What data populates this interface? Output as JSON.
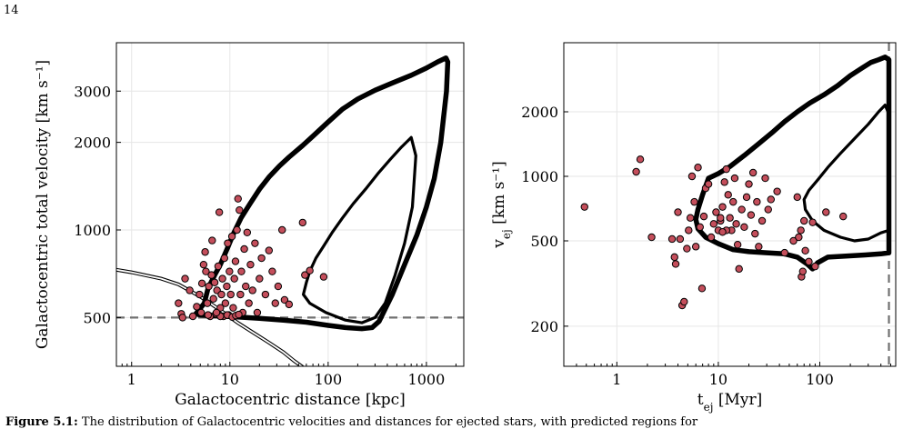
{
  "page_number": "14",
  "caption": {
    "label": "Figure 5.1:",
    "text": "The distribution of Galactocentric velocities and distances for ejected stars, with predicted regions for"
  },
  "colors": {
    "points": "#c44e5b",
    "point_edge": "#000000",
    "contour": "#000000",
    "dashed": "#707070",
    "escape": "#000000",
    "grid": "#e6e6e6"
  },
  "chart_data": [
    {
      "type": "scatter",
      "xlabel": "Galactocentric distance [kpc]",
      "ylabel": "Galactocentric total velocity [km s⁻¹]",
      "xscale": "log",
      "yscale": "log",
      "xlim": [
        0.7,
        2400
      ],
      "ylim": [
        340,
        4400
      ],
      "xticks": [
        {
          "v": 1,
          "label": "1"
        },
        {
          "v": 10,
          "label": "10"
        },
        {
          "v": 100,
          "label": "100"
        },
        {
          "v": 1000,
          "label": "1000"
        }
      ],
      "yticks": [
        {
          "v": 500,
          "label": "500"
        },
        {
          "v": 1000,
          "label": "1000"
        },
        {
          "v": 2000,
          "label": "2000"
        },
        {
          "v": 3000,
          "label": "3000"
        }
      ],
      "grid": true,
      "hline": 500,
      "points": [
        [
          3.0,
          560
        ],
        [
          3.2,
          515
        ],
        [
          3.3,
          500
        ],
        [
          3.5,
          680
        ],
        [
          3.9,
          620
        ],
        [
          4.2,
          505
        ],
        [
          4.6,
          545
        ],
        [
          4.9,
          600
        ],
        [
          5.1,
          520
        ],
        [
          5.2,
          655
        ],
        [
          5.4,
          760
        ],
        [
          5.6,
          840
        ],
        [
          5.7,
          720
        ],
        [
          5.9,
          560
        ],
        [
          6.1,
          640
        ],
        [
          6.3,
          505
        ],
        [
          6.5,
          700
        ],
        [
          6.6,
          920
        ],
        [
          6.8,
          580
        ],
        [
          7.0,
          660
        ],
        [
          7.2,
          515
        ],
        [
          7.4,
          620
        ],
        [
          7.6,
          750
        ],
        [
          7.8,
          1150
        ],
        [
          8.0,
          540
        ],
        [
          8.2,
          600
        ],
        [
          8.4,
          680
        ],
        [
          8.6,
          505
        ],
        [
          8.8,
          800
        ],
        [
          9.0,
          560
        ],
        [
          9.3,
          640
        ],
        [
          9.5,
          900
        ],
        [
          9.7,
          510
        ],
        [
          9.9,
          720
        ],
        [
          10.2,
          600
        ],
        [
          10.5,
          950
        ],
        [
          10.8,
          540
        ],
        [
          11.1,
          680
        ],
        [
          11.4,
          780
        ],
        [
          11.8,
          1000
        ],
        [
          12.1,
          1280
        ],
        [
          12.5,
          1170
        ],
        [
          12.8,
          600
        ],
        [
          13.1,
          720
        ],
        [
          13.5,
          520
        ],
        [
          14.0,
          860
        ],
        [
          14.5,
          640
        ],
        [
          15.0,
          980
        ],
        [
          15.6,
          560
        ],
        [
          16.2,
          760
        ],
        [
          17.0,
          620
        ],
        [
          18.0,
          900
        ],
        [
          19.0,
          520
        ],
        [
          20.0,
          680
        ],
        [
          21.0,
          800
        ],
        [
          23.0,
          600
        ],
        [
          25.0,
          850
        ],
        [
          27.0,
          720
        ],
        [
          29.0,
          560
        ],
        [
          31.0,
          640
        ],
        [
          34.0,
          1000
        ],
        [
          36.0,
          575
        ],
        [
          40.0,
          555
        ],
        [
          55.0,
          1060
        ],
        [
          58.0,
          700
        ],
        [
          65.0,
          725
        ],
        [
          90.0,
          690
        ],
        [
          8.0,
          505
        ],
        [
          9.4,
          510
        ],
        [
          10.6,
          502
        ],
        [
          11.5,
          508
        ],
        [
          12.3,
          512
        ],
        [
          6.0,
          510
        ],
        [
          7.3,
          520
        ]
      ],
      "escape_curve": [
        [
          0.7,
          730
        ],
        [
          1.0,
          715
        ],
        [
          2.0,
          680
        ],
        [
          3.0,
          650
        ],
        [
          5.0,
          590
        ],
        [
          8.0,
          530
        ],
        [
          12.0,
          480
        ],
        [
          18.0,
          440
        ],
        [
          25.0,
          410
        ],
        [
          35.0,
          380
        ],
        [
          45.0,
          355
        ],
        [
          55.0,
          338
        ]
      ],
      "contour_outer": [
        [
          4.5,
          515
        ],
        [
          5.5,
          560
        ],
        [
          6.0,
          630
        ],
        [
          7.0,
          700
        ],
        [
          8.0,
          760
        ],
        [
          9.5,
          870
        ],
        [
          11,
          980
        ],
        [
          13,
          1100
        ],
        [
          16,
          1230
        ],
        [
          20,
          1380
        ],
        [
          25,
          1520
        ],
        [
          32,
          1660
        ],
        [
          40,
          1780
        ],
        [
          55,
          1950
        ],
        [
          70,
          2100
        ],
        [
          100,
          2350
        ],
        [
          140,
          2600
        ],
        [
          200,
          2820
        ],
        [
          300,
          3020
        ],
        [
          450,
          3200
        ],
        [
          700,
          3400
        ],
        [
          1000,
          3600
        ],
        [
          1300,
          3780
        ],
        [
          1580,
          3900
        ],
        [
          1650,
          3780
        ],
        [
          1600,
          3000
        ],
        [
          1400,
          2000
        ],
        [
          1200,
          1500
        ],
        [
          1000,
          1200
        ],
        [
          800,
          960
        ],
        [
          600,
          760
        ],
        [
          450,
          600
        ],
        [
          330,
          485
        ],
        [
          280,
          462
        ],
        [
          220,
          458
        ],
        [
          150,
          462
        ],
        [
          100,
          470
        ],
        [
          60,
          482
        ],
        [
          35,
          490
        ],
        [
          20,
          497
        ],
        [
          12,
          502
        ],
        [
          8,
          506
        ],
        [
          5,
          510
        ],
        [
          4.5,
          515
        ]
      ],
      "contour_inner": [
        [
          56,
          600
        ],
        [
          60,
          660
        ],
        [
          65,
          720
        ],
        [
          75,
          800
        ],
        [
          90,
          880
        ],
        [
          110,
          980
        ],
        [
          140,
          1100
        ],
        [
          180,
          1230
        ],
        [
          240,
          1380
        ],
        [
          320,
          1560
        ],
        [
          430,
          1750
        ],
        [
          560,
          1930
        ],
        [
          700,
          2080
        ],
        [
          780,
          1800
        ],
        [
          720,
          1200
        ],
        [
          600,
          900
        ],
        [
          480,
          700
        ],
        [
          380,
          560
        ],
        [
          300,
          500
        ],
        [
          220,
          480
        ],
        [
          150,
          490
        ],
        [
          95,
          520
        ],
        [
          65,
          560
        ],
        [
          56,
          600
        ]
      ]
    },
    {
      "type": "scatter",
      "xlabel": "t",
      "xlabel_sub": "ej",
      "xlabel_unit": " [Myr]",
      "ylabel": "v",
      "ylabel_sub": "ej",
      "ylabel_unit": " [km s⁻¹]",
      "xscale": "log",
      "yscale": "log",
      "xlim": [
        0.3,
        560
      ],
      "ylim": [
        130,
        4200
      ],
      "xticks": [
        {
          "v": 1,
          "label": "1"
        },
        {
          "v": 10,
          "label": "10"
        },
        {
          "v": 100,
          "label": "100"
        }
      ],
      "yticks": [
        {
          "v": 200,
          "label": "200"
        },
        {
          "v": 500,
          "label": "500"
        },
        {
          "v": 1000,
          "label": "1000"
        },
        {
          "v": 2000,
          "label": "2000"
        }
      ],
      "grid": true,
      "vline": 480,
      "points": [
        [
          0.48,
          720
        ],
        [
          1.55,
          1050
        ],
        [
          1.7,
          1200
        ],
        [
          2.2,
          520
        ],
        [
          3.5,
          510
        ],
        [
          3.7,
          420
        ],
        [
          3.8,
          390
        ],
        [
          4.0,
          680
        ],
        [
          4.2,
          510
        ],
        [
          4.4,
          250
        ],
        [
          4.6,
          260
        ],
        [
          4.9,
          460
        ],
        [
          5.1,
          560
        ],
        [
          5.3,
          640
        ],
        [
          5.5,
          1000
        ],
        [
          5.8,
          760
        ],
        [
          6.0,
          470
        ],
        [
          6.3,
          1100
        ],
        [
          6.6,
          580
        ],
        [
          6.9,
          300
        ],
        [
          7.2,
          650
        ],
        [
          7.5,
          880
        ],
        [
          8.0,
          920
        ],
        [
          8.5,
          520
        ],
        [
          9.0,
          600
        ],
        [
          9.5,
          680
        ],
        [
          10.0,
          560
        ],
        [
          10.5,
          620
        ],
        [
          11.0,
          720
        ],
        [
          11.5,
          940
        ],
        [
          12.0,
          1080
        ],
        [
          12.5,
          820
        ],
        [
          13.0,
          640
        ],
        [
          13.5,
          560
        ],
        [
          14.0,
          760
        ],
        [
          14.5,
          980
        ],
        [
          15.0,
          600
        ],
        [
          15.5,
          480
        ],
        [
          16.0,
          370
        ],
        [
          17.0,
          700
        ],
        [
          18.0,
          580
        ],
        [
          19.0,
          800
        ],
        [
          20.0,
          920
        ],
        [
          21.0,
          660
        ],
        [
          22.0,
          1040
        ],
        [
          23.0,
          540
        ],
        [
          24.0,
          760
        ],
        [
          25.0,
          470
        ],
        [
          27.0,
          620
        ],
        [
          29.0,
          980
        ],
        [
          31.0,
          700
        ],
        [
          33.0,
          780
        ],
        [
          38.0,
          850
        ],
        [
          45.0,
          440
        ],
        [
          55.0,
          500
        ],
        [
          60.0,
          800
        ],
        [
          62.0,
          520
        ],
        [
          65.0,
          560
        ],
        [
          66.0,
          340
        ],
        [
          68.0,
          360
        ],
        [
          70.0,
          620
        ],
        [
          72.0,
          450
        ],
        [
          78.0,
          400
        ],
        [
          85.0,
          610
        ],
        [
          90.0,
          380
        ],
        [
          115.0,
          680
        ],
        [
          170.0,
          650
        ],
        [
          12.0,
          560
        ],
        [
          11.0,
          550
        ],
        [
          10.5,
          640
        ]
      ],
      "contour_outer": [
        [
          8.0,
          980
        ],
        [
          7.0,
          820
        ],
        [
          6.3,
          700
        ],
        [
          6.0,
          630
        ],
        [
          6.3,
          570
        ],
        [
          7.5,
          520
        ],
        [
          10,
          485
        ],
        [
          14,
          455
        ],
        [
          20,
          445
        ],
        [
          30,
          440
        ],
        [
          45,
          435
        ],
        [
          60,
          420
        ],
        [
          75,
          390
        ],
        [
          85,
          370
        ],
        [
          95,
          395
        ],
        [
          120,
          420
        ],
        [
          180,
          425
        ],
        [
          280,
          430
        ],
        [
          400,
          435
        ],
        [
          480,
          440
        ],
        [
          480,
          3500
        ],
        [
          440,
          3600
        ],
        [
          380,
          3500
        ],
        [
          320,
          3400
        ],
        [
          260,
          3200
        ],
        [
          200,
          2950
        ],
        [
          150,
          2650
        ],
        [
          110,
          2400
        ],
        [
          80,
          2200
        ],
        [
          60,
          2000
        ],
        [
          45,
          1800
        ],
        [
          35,
          1620
        ],
        [
          25,
          1420
        ],
        [
          18,
          1250
        ],
        [
          13,
          1110
        ],
        [
          10,
          1030
        ],
        [
          8.0,
          980
        ]
      ],
      "contour_inner": [
        [
          480,
          560
        ],
        [
          400,
          545
        ],
        [
          300,
          510
        ],
        [
          220,
          500
        ],
        [
          160,
          520
        ],
        [
          110,
          560
        ],
        [
          85,
          620
        ],
        [
          72,
          700
        ],
        [
          70,
          780
        ],
        [
          78,
          860
        ],
        [
          95,
          960
        ],
        [
          120,
          1100
        ],
        [
          160,
          1280
        ],
        [
          220,
          1500
        ],
        [
          300,
          1750
        ],
        [
          380,
          2000
        ],
        [
          440,
          2150
        ],
        [
          470,
          2000
        ],
        [
          480,
          1800
        ]
      ]
    }
  ]
}
